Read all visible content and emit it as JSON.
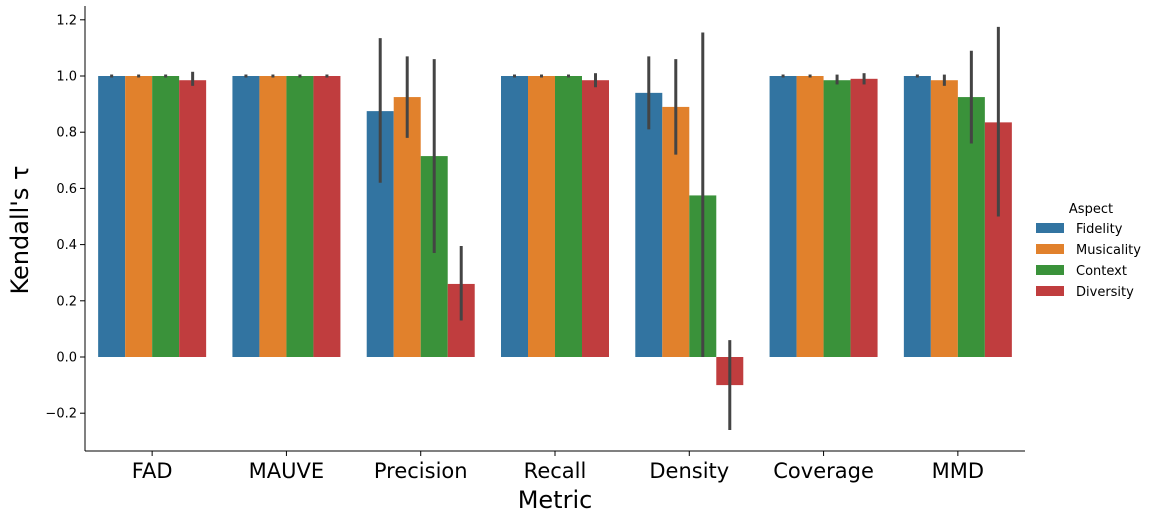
{
  "chart_data": {
    "type": "bar",
    "xlabel": "Metric",
    "ylabel": "Kendall's τ",
    "ylim": [
      -0.33,
      1.25
    ],
    "yticks": [
      -0.2,
      0.0,
      0.2,
      0.4,
      0.6,
      0.8,
      1.0,
      1.2
    ],
    "ytick_labels": [
      "−0.2",
      "0.0",
      "0.2",
      "0.4",
      "0.6",
      "0.8",
      "1.0",
      "1.2"
    ],
    "grid": false,
    "legend_title": "Aspect",
    "legend_position": "right",
    "categories": [
      "FAD",
      "MAUVE",
      "Precision",
      "Recall",
      "Density",
      "Coverage",
      "MMD"
    ],
    "series": [
      {
        "name": "Fidelity",
        "color": "#3274a1",
        "values": [
          1.0,
          1.0,
          0.875,
          1.0,
          0.94,
          1.0,
          1.0
        ],
        "ci_low": [
          1.0,
          1.0,
          0.62,
          1.0,
          0.81,
          1.0,
          1.0
        ],
        "ci_high": [
          1.0,
          1.0,
          1.135,
          1.0,
          1.07,
          1.0,
          1.0
        ]
      },
      {
        "name": "Musicality",
        "color": "#e1812c",
        "values": [
          1.0,
          1.0,
          0.925,
          1.0,
          0.89,
          1.0,
          0.985
        ],
        "ci_low": [
          1.0,
          1.0,
          0.78,
          1.0,
          0.72,
          1.0,
          0.965
        ],
        "ci_high": [
          1.0,
          1.0,
          1.07,
          1.0,
          1.06,
          1.0,
          1.005
        ]
      },
      {
        "name": "Context",
        "color": "#3a923a",
        "values": [
          1.0,
          1.0,
          0.715,
          1.0,
          0.575,
          0.985,
          0.925
        ],
        "ci_low": [
          1.0,
          1.0,
          0.37,
          1.0,
          0.0,
          0.97,
          0.76
        ],
        "ci_high": [
          1.0,
          1.0,
          1.06,
          1.0,
          1.155,
          1.005,
          1.09
        ]
      },
      {
        "name": "Diversity",
        "color": "#c03d3e",
        "values": [
          0.985,
          1.0,
          0.26,
          0.985,
          -0.1,
          0.99,
          0.835
        ],
        "ci_low": [
          0.965,
          1.0,
          0.13,
          0.96,
          -0.26,
          0.97,
          0.5
        ],
        "ci_high": [
          1.015,
          1.0,
          0.395,
          1.01,
          0.06,
          1.01,
          1.175
        ]
      }
    ]
  }
}
